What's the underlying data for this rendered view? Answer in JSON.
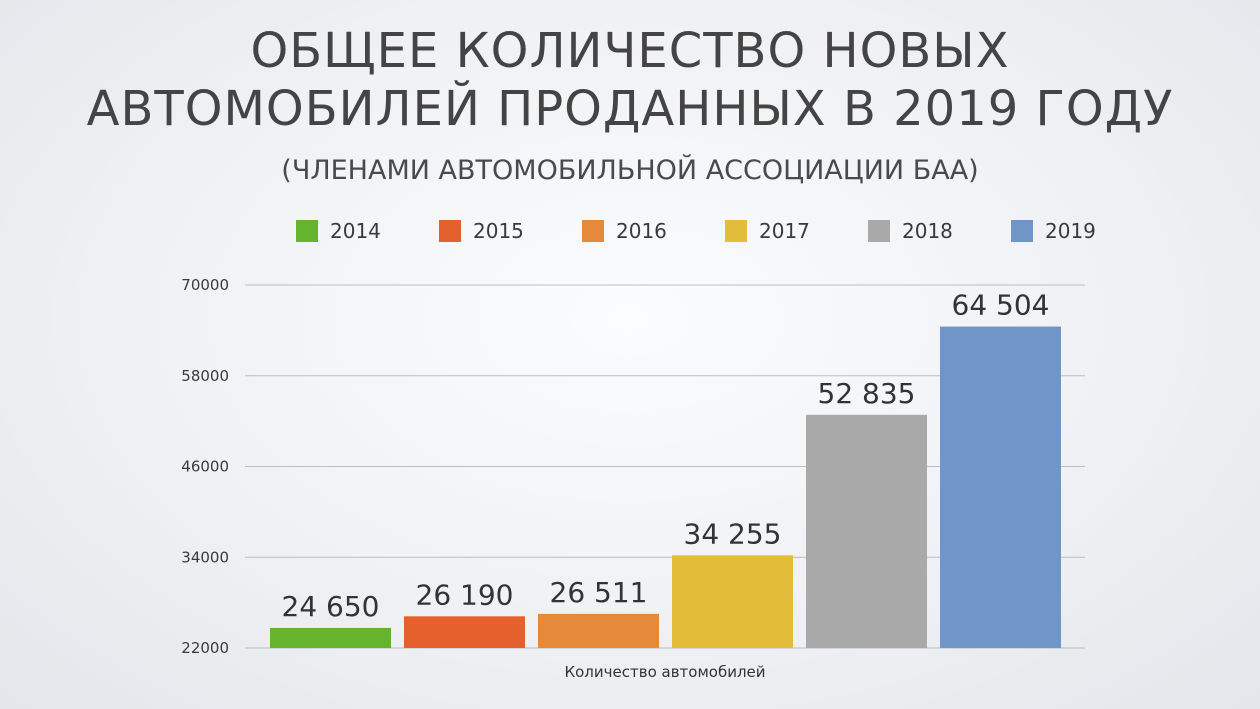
{
  "title_line1": "ОБЩЕЕ КОЛИЧЕСТВО НОВЫХ",
  "title_line2": "АВТОМОБИЛЕЙ ПРОДАННЫХ В 2019 ГОДУ",
  "subtitle": "(ЧЛЕНАМИ АВТОМОБИЛЬНОЙ АССОЦИАЦИИ БАА)",
  "chart_data": {
    "type": "bar",
    "title": "ОБЩЕЕ КОЛИЧЕСТВО НОВЫХ АВТОМОБИЛЕЙ ПРОДАННЫХ В 2019 ГОДУ",
    "subtitle": "(ЧЛЕНАМИ АВТОМОБИЛЬНОЙ АССОЦИАЦИИ БАА)",
    "xlabel": "Количество автомобилей",
    "ylabel": "",
    "ylim": [
      22000,
      70000
    ],
    "yticks": [
      22000,
      34000,
      46000,
      58000,
      70000
    ],
    "ytick_labels": [
      "22000",
      "34000",
      "46000",
      "58000",
      "70000"
    ],
    "grid": true,
    "legend_position": "top",
    "categories": [
      "Количество автомобилей"
    ],
    "series": [
      {
        "name": "2014",
        "values": [
          24650
        ],
        "label": "24 650",
        "color": "#66b32e"
      },
      {
        "name": "2015",
        "values": [
          26190
        ],
        "label": "26 190",
        "color": "#e4612e"
      },
      {
        "name": "2016",
        "values": [
          26511
        ],
        "label": "26 511",
        "color": "#e58a3a"
      },
      {
        "name": "2017",
        "values": [
          34255
        ],
        "label": "34 255",
        "color": "#e3bd3a"
      },
      {
        "name": "2018",
        "values": [
          52835
        ],
        "label": "52 835",
        "color": "#a9a9a9"
      },
      {
        "name": "2019",
        "values": [
          64504
        ],
        "label": "64 504",
        "color": "#6f96c7"
      }
    ]
  }
}
